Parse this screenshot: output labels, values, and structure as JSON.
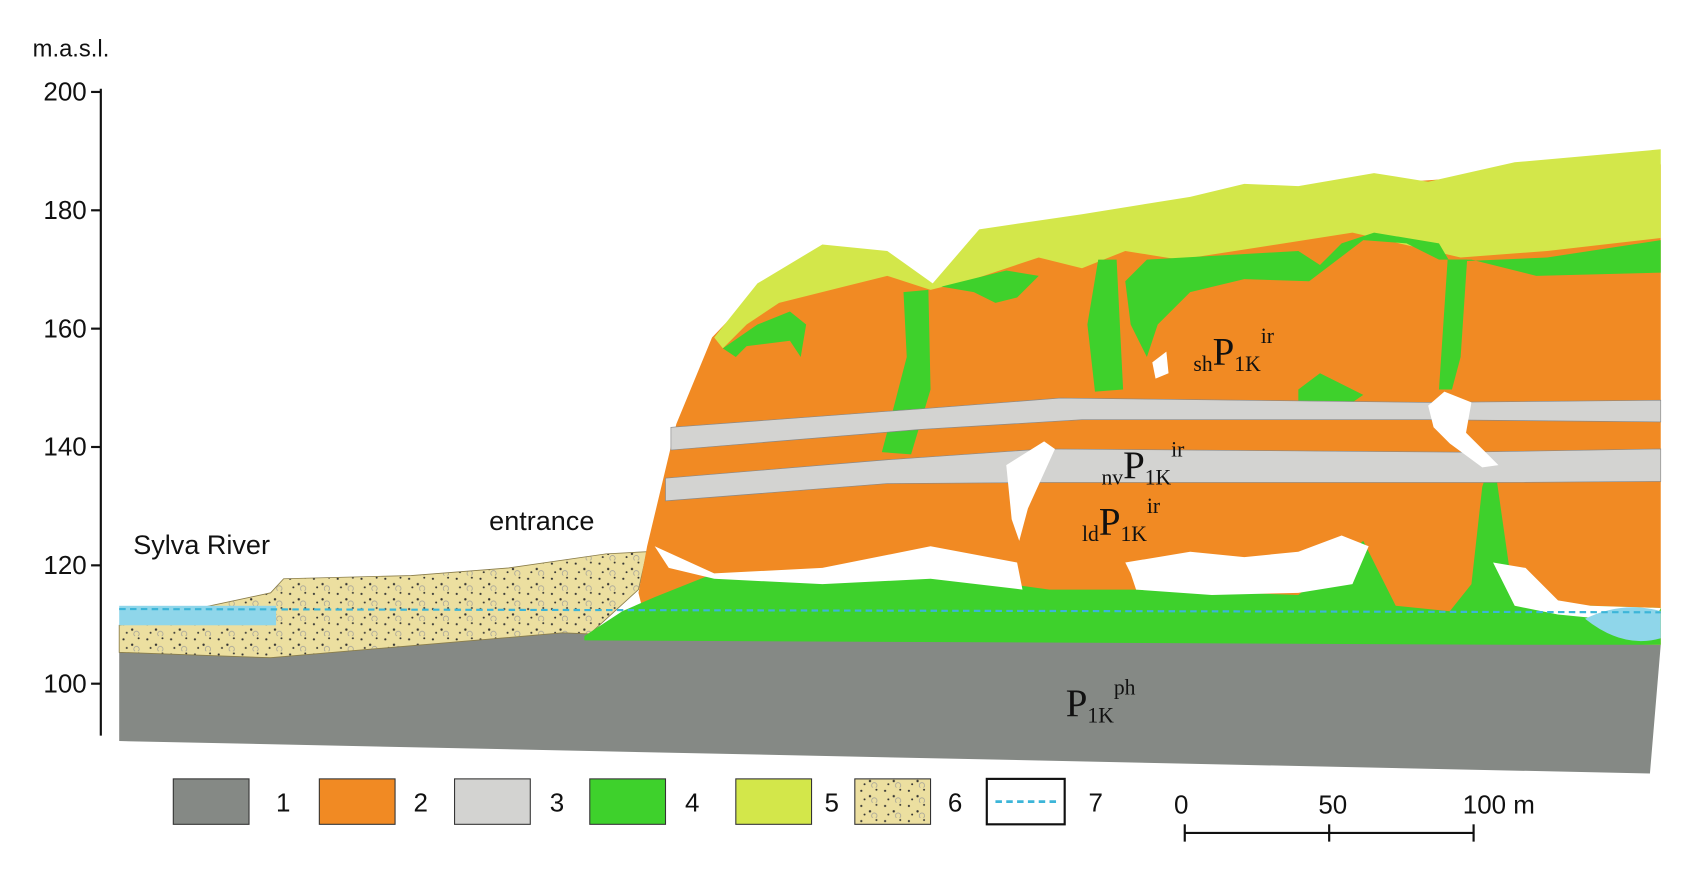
{
  "axis": {
    "label": "m.a.s.l.",
    "ticks": [
      200,
      180,
      160,
      140,
      120,
      100
    ]
  },
  "labels": {
    "river": "Sylva River",
    "entrance": "entrance"
  },
  "formations": [
    {
      "prefix": "sh",
      "symbol": "P",
      "index": "1K",
      "suffix": "ir"
    },
    {
      "prefix": "nv",
      "symbol": "P",
      "index": "1K",
      "suffix": "ir"
    },
    {
      "prefix": "ld",
      "symbol": "P",
      "index": "1K",
      "suffix": "ir"
    },
    {
      "symbol": "P",
      "index": "1K",
      "suffix": "ph"
    }
  ],
  "legend": [
    "1",
    "2",
    "3",
    "4",
    "5",
    "6",
    "7"
  ],
  "scale": {
    "ticks": [
      0,
      50,
      {
        "value": 100,
        "label": "100 m"
      }
    ]
  }
}
